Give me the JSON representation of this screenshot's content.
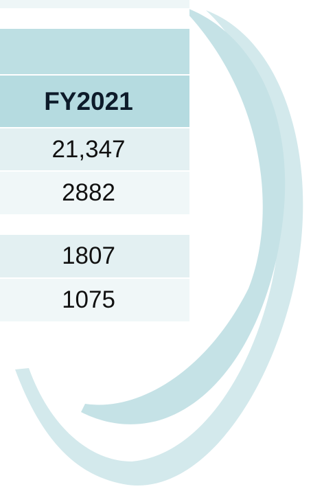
{
  "table": {
    "header": "FY2021",
    "rows": [
      "21,347",
      "2882",
      "1807",
      "1075"
    ]
  }
}
